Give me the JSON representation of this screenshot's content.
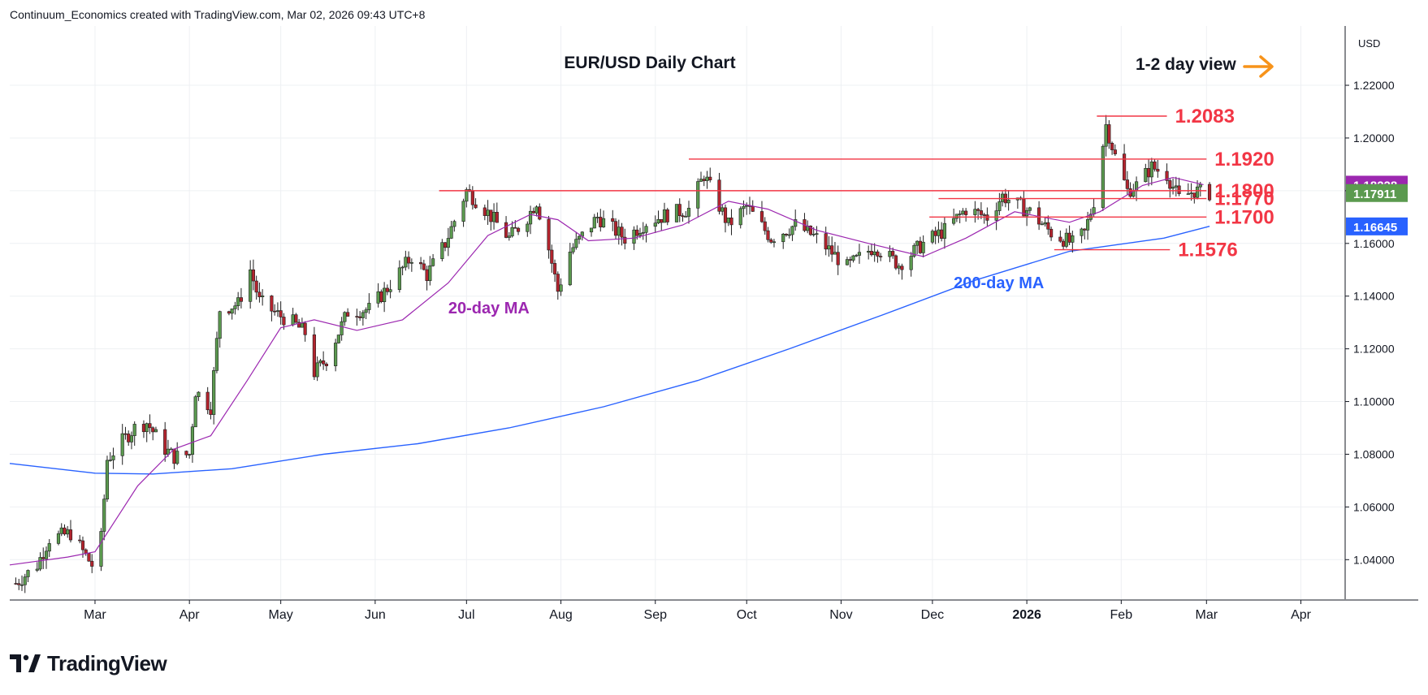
{
  "header": {
    "credit": "Continuum_Economics created with TradingView.com, Mar 02, 2026 09:43 UTC+8"
  },
  "brand": {
    "name": "TradingView",
    "icon": "tradingview-logo-icon"
  },
  "colors": {
    "up": "#5b9a4f",
    "down": "#b3242e",
    "wick": "#1f1f1f",
    "ma20": "#9c27b0",
    "ma200": "#2962ff",
    "levels": "#f23645",
    "arrow": "#f7931a",
    "grid": "#eef0f3"
  },
  "chart_data": {
    "type": "candlestick",
    "title": "EUR/USD Daily Chart",
    "view_label": "1-2 day view",
    "currency_label": "USD",
    "x_ticks": [
      "Mar",
      "Apr",
      "May",
      "Jun",
      "Jul",
      "Aug",
      "Sep",
      "Oct",
      "Nov",
      "Dec",
      "2026",
      "Feb",
      "Mar",
      "Apr"
    ],
    "x_tick_dates": [
      "2025-03-01",
      "2025-04-01",
      "2025-05-01",
      "2025-06-01",
      "2025-07-01",
      "2025-08-01",
      "2025-09-01",
      "2025-10-01",
      "2025-11-01",
      "2025-12-01",
      "2026-01-01",
      "2026-02-01",
      "2026-03-01",
      "2026-04-01"
    ],
    "x_range": [
      "2025-02-01",
      "2026-04-15"
    ],
    "y_range": [
      1.025,
      1.2425
    ],
    "y_ticks": [
      "1.22000",
      "1.20000",
      "1.18000",
      "1.16000",
      "1.14000",
      "1.12000",
      "1.10000",
      "1.08000",
      "1.06000",
      "1.04000"
    ],
    "price_badges": [
      {
        "label": "1.18228",
        "value": 1.18228,
        "color": "#9c27b0"
      },
      {
        "label": "1.17911",
        "value": 1.17911,
        "color": "#5b9a4f"
      },
      {
        "label": "1.16645",
        "value": 1.16645,
        "color": "#2962ff"
      }
    ],
    "levels": [
      {
        "label": "1.2083",
        "value": 1.2083,
        "from": "2026-01-24",
        "to": "2026-02-16"
      },
      {
        "label": "1.1920",
        "value": 1.192,
        "from": "2025-09-12",
        "to": "2026-03-01"
      },
      {
        "label": "1.1800",
        "value": 1.18,
        "from": "2025-06-22",
        "to": "2026-03-01"
      },
      {
        "label": "1.1770",
        "value": 1.177,
        "from": "2025-12-03",
        "to": "2026-03-01"
      },
      {
        "label": "1.1700",
        "value": 1.17,
        "from": "2025-11-30",
        "to": "2026-03-01"
      },
      {
        "label": "1.1576",
        "value": 1.1576,
        "from": "2026-01-10",
        "to": "2026-02-17"
      }
    ],
    "annotations": [
      {
        "label": "20-day MA",
        "date": "2025-06-25",
        "value": 1.1335
      },
      {
        "label": "200-day MA",
        "date": "2025-12-08",
        "value": 1.143
      }
    ],
    "price_path": [
      [
        "2025-02-03",
        1.031
      ],
      [
        "2025-02-10",
        1.038
      ],
      [
        "2025-02-14",
        1.048
      ],
      [
        "2025-02-21",
        1.05
      ],
      [
        "2025-02-28",
        1.038
      ],
      [
        "2025-03-03",
        1.048
      ],
      [
        "2025-03-05",
        1.078
      ],
      [
        "2025-03-10",
        1.085
      ],
      [
        "2025-03-14",
        1.09
      ],
      [
        "2025-03-18",
        1.092
      ],
      [
        "2025-03-24",
        1.082
      ],
      [
        "2025-03-27",
        1.079
      ],
      [
        "2025-04-01",
        1.08
      ],
      [
        "2025-04-03",
        1.104
      ],
      [
        "2025-04-08",
        1.098
      ],
      [
        "2025-04-11",
        1.135
      ],
      [
        "2025-04-17",
        1.137
      ],
      [
        "2025-04-21",
        1.15
      ],
      [
        "2025-04-24",
        1.138
      ],
      [
        "2025-04-30",
        1.133
      ],
      [
        "2025-05-05",
        1.13
      ],
      [
        "2025-05-09",
        1.126
      ],
      [
        "2025-05-12",
        1.111
      ],
      [
        "2025-05-16",
        1.116
      ],
      [
        "2025-05-23",
        1.134
      ],
      [
        "2025-05-30",
        1.135
      ],
      [
        "2025-06-05",
        1.143
      ],
      [
        "2025-06-13",
        1.155
      ],
      [
        "2025-06-18",
        1.148
      ],
      [
        "2025-06-24",
        1.16
      ],
      [
        "2025-07-01",
        1.18
      ],
      [
        "2025-07-07",
        1.173
      ],
      [
        "2025-07-15",
        1.162
      ],
      [
        "2025-07-21",
        1.17
      ],
      [
        "2025-07-24",
        1.176
      ],
      [
        "2025-07-28",
        1.158
      ],
      [
        "2025-07-31",
        1.142
      ],
      [
        "2025-08-04",
        1.157
      ],
      [
        "2025-08-13",
        1.17
      ],
      [
        "2025-08-22",
        1.162
      ],
      [
        "2025-08-29",
        1.168
      ],
      [
        "2025-09-05",
        1.171
      ],
      [
        "2025-09-12",
        1.173
      ],
      [
        "2025-09-17",
        1.186
      ],
      [
        "2025-09-25",
        1.167
      ],
      [
        "2025-10-01",
        1.174
      ],
      [
        "2025-10-09",
        1.162
      ],
      [
        "2025-10-17",
        1.167
      ],
      [
        "2025-10-24",
        1.162
      ],
      [
        "2025-11-03",
        1.151
      ],
      [
        "2025-11-12",
        1.159
      ],
      [
        "2025-11-20",
        1.152
      ],
      [
        "2025-11-28",
        1.16
      ],
      [
        "2025-12-05",
        1.165
      ],
      [
        "2025-12-12",
        1.173
      ],
      [
        "2025-12-19",
        1.17
      ],
      [
        "2025-12-24",
        1.178
      ],
      [
        "2026-01-02",
        1.172
      ],
      [
        "2026-01-09",
        1.164
      ],
      [
        "2026-01-16",
        1.16
      ],
      [
        "2026-01-20",
        1.164
      ],
      [
        "2026-01-23",
        1.176
      ],
      [
        "2026-01-27",
        1.205
      ],
      [
        "2026-01-30",
        1.193
      ],
      [
        "2026-02-03",
        1.18
      ],
      [
        "2026-02-06",
        1.182
      ],
      [
        "2026-02-11",
        1.189
      ],
      [
        "2026-02-16",
        1.186
      ],
      [
        "2026-02-20",
        1.177
      ],
      [
        "2026-02-25",
        1.18
      ],
      [
        "2026-03-02",
        1.1791
      ]
    ],
    "ma20": [
      [
        "2025-02-01",
        1.038
      ],
      [
        "2025-02-20",
        1.041
      ],
      [
        "2025-03-01",
        1.043
      ],
      [
        "2025-03-15",
        1.068
      ],
      [
        "2025-03-27",
        1.082
      ],
      [
        "2025-04-08",
        1.087
      ],
      [
        "2025-04-20",
        1.108
      ],
      [
        "2025-05-01",
        1.128
      ],
      [
        "2025-05-12",
        1.131
      ],
      [
        "2025-05-26",
        1.127
      ],
      [
        "2025-06-10",
        1.131
      ],
      [
        "2025-06-25",
        1.145
      ],
      [
        "2025-07-08",
        1.163
      ],
      [
        "2025-07-22",
        1.171
      ],
      [
        "2025-07-31",
        1.169
      ],
      [
        "2025-08-10",
        1.161
      ],
      [
        "2025-08-25",
        1.162
      ],
      [
        "2025-09-10",
        1.167
      ],
      [
        "2025-09-25",
        1.176
      ],
      [
        "2025-10-08",
        1.173
      ],
      [
        "2025-10-24",
        1.165
      ],
      [
        "2025-11-10",
        1.16
      ],
      [
        "2025-11-28",
        1.155
      ],
      [
        "2025-12-12",
        1.162
      ],
      [
        "2025-12-28",
        1.172
      ],
      [
        "2026-01-15",
        1.168
      ],
      [
        "2026-01-25",
        1.172
      ],
      [
        "2026-02-08",
        1.182
      ],
      [
        "2026-02-18",
        1.185
      ],
      [
        "2026-02-28",
        1.1823
      ]
    ],
    "ma200": [
      [
        "2025-02-01",
        1.0765
      ],
      [
        "2025-03-01",
        1.0728
      ],
      [
        "2025-03-20",
        1.0725
      ],
      [
        "2025-04-15",
        1.0745
      ],
      [
        "2025-05-15",
        1.08
      ],
      [
        "2025-06-15",
        1.084
      ],
      [
        "2025-07-15",
        1.09
      ],
      [
        "2025-08-15",
        1.098
      ],
      [
        "2025-09-15",
        1.108
      ],
      [
        "2025-10-15",
        1.12
      ],
      [
        "2025-11-15",
        1.133
      ],
      [
        "2025-12-15",
        1.146
      ],
      [
        "2026-01-15",
        1.157
      ],
      [
        "2026-02-15",
        1.162
      ],
      [
        "2026-03-02",
        1.1665
      ]
    ]
  }
}
